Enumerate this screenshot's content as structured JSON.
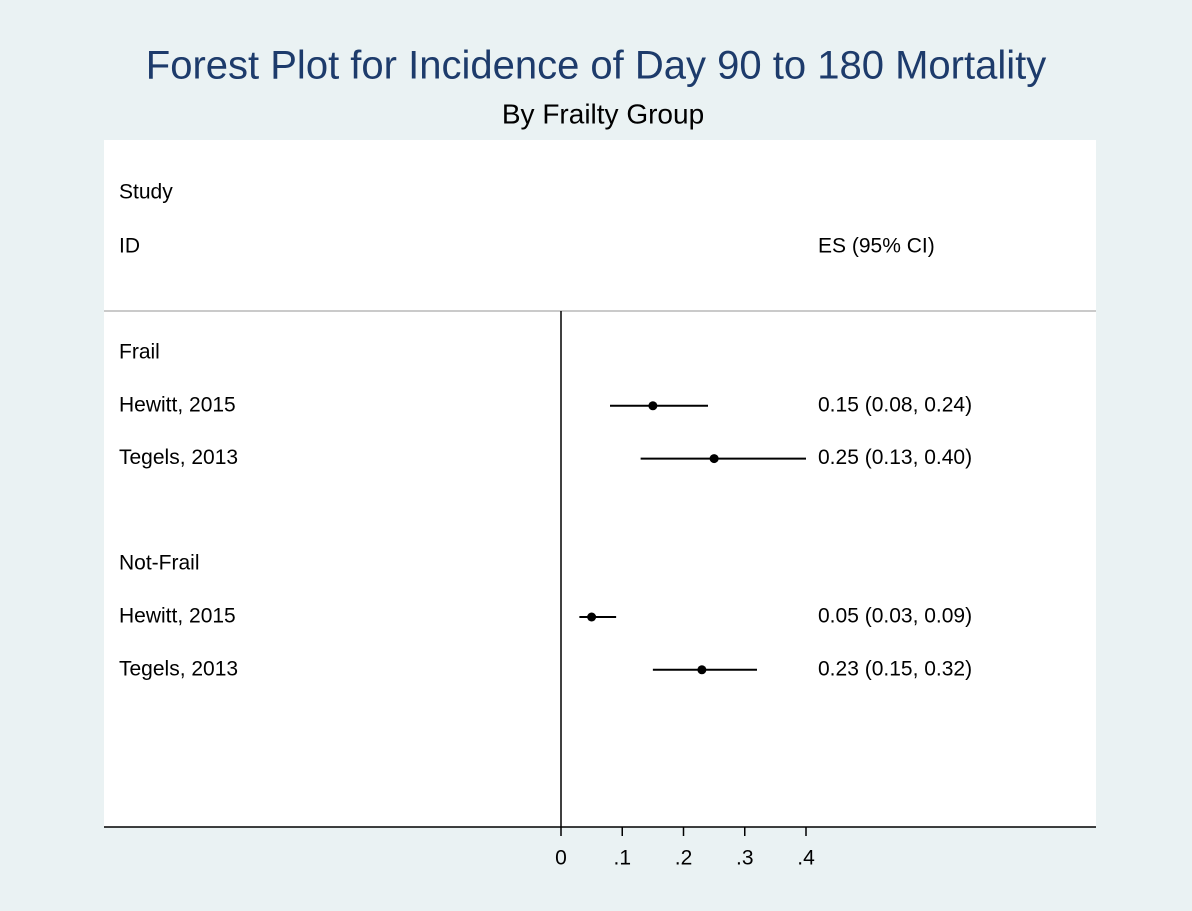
{
  "chart_data": {
    "type": "forest",
    "title": "Forest Plot for Incidence of Day 90 to 180 Mortality",
    "subtitle": "By Frailty Group",
    "id_header": [
      "Study",
      "ID"
    ],
    "es_header": "ES (95% CI)",
    "color": "#000000",
    "groups": [
      {
        "name": "Frail",
        "categories": [
          "Hewitt, 2015",
          "Tegels, 2013"
        ],
        "values": [
          0.15,
          0.25
        ],
        "lower": [
          0.08,
          0.13
        ],
        "upper": [
          0.24,
          0.4
        ],
        "value_labels": [
          "0.15 (0.08, 0.24)",
          "0.25 (0.13, 0.40)"
        ]
      },
      {
        "name": "Not-Frail",
        "categories": [
          "Hewitt, 2015",
          "Tegels, 2013"
        ],
        "values": [
          0.05,
          0.23
        ],
        "lower": [
          0.03,
          0.15
        ],
        "upper": [
          0.09,
          0.32
        ],
        "value_labels": [
          "0.05 (0.03, 0.09)",
          "0.23 (0.15, 0.32)"
        ]
      }
    ],
    "xlim": [
      0,
      0.4
    ],
    "xticks": [
      0,
      {
        "value": 0.1,
        "label": ".1"
      },
      {
        "value": 0.2,
        "label": ".2"
      },
      {
        "value": 0.3,
        "label": ".3"
      },
      {
        "value": 0.4,
        "label": ".4"
      }
    ]
  }
}
